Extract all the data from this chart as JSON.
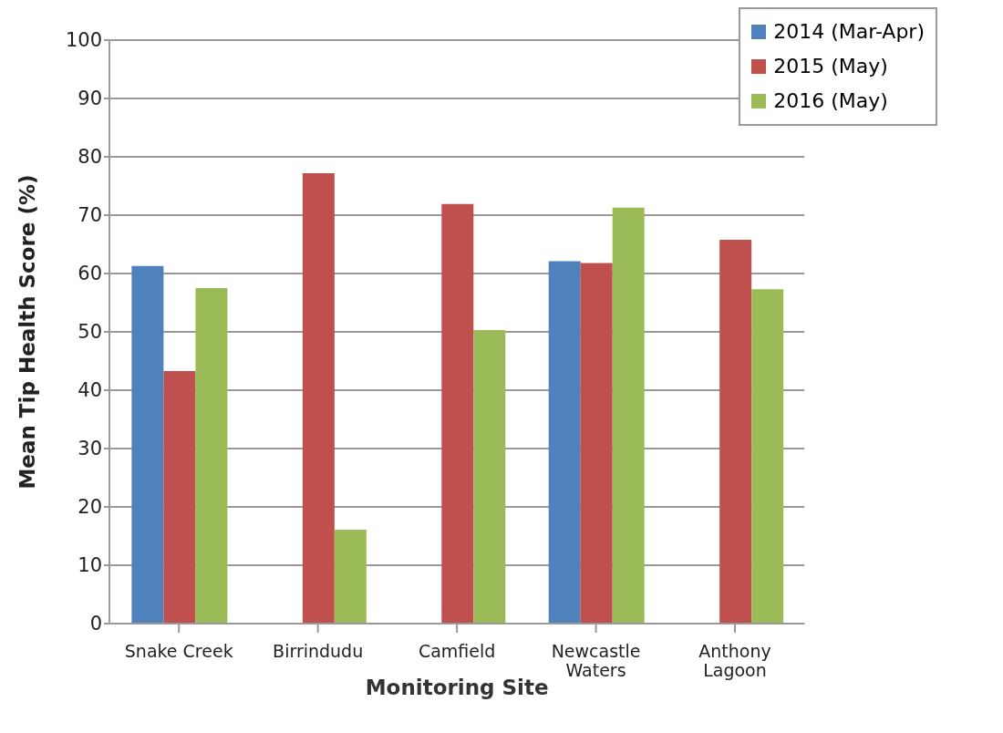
{
  "chart_data": {
    "type": "bar",
    "xlabel": "Monitoring Site",
    "ylabel": "Mean Tip Health Score (%)",
    "categories": [
      "Snake Creek",
      "Birrindudu",
      "Camfield",
      "Newcastle Waters",
      "Anthony Lagoon"
    ],
    "series": [
      {
        "name": "2014 (Mar-Apr)",
        "color": "#4f81bd",
        "values": [
          61.3,
          null,
          null,
          62.1,
          null
        ]
      },
      {
        "name": "2015 (May)",
        "color": "#c0504d",
        "values": [
          43.3,
          77.2,
          71.9,
          61.8,
          65.8
        ]
      },
      {
        "name": "2016 (May)",
        "color": "#9bbb59",
        "values": [
          57.5,
          16.1,
          50.3,
          71.3,
          57.3
        ]
      }
    ],
    "ylim": [
      0,
      100
    ],
    "yticks": [
      0,
      10,
      20,
      30,
      40,
      50,
      60,
      70,
      80,
      90,
      100
    ],
    "grid": "y",
    "legend": "top right"
  }
}
